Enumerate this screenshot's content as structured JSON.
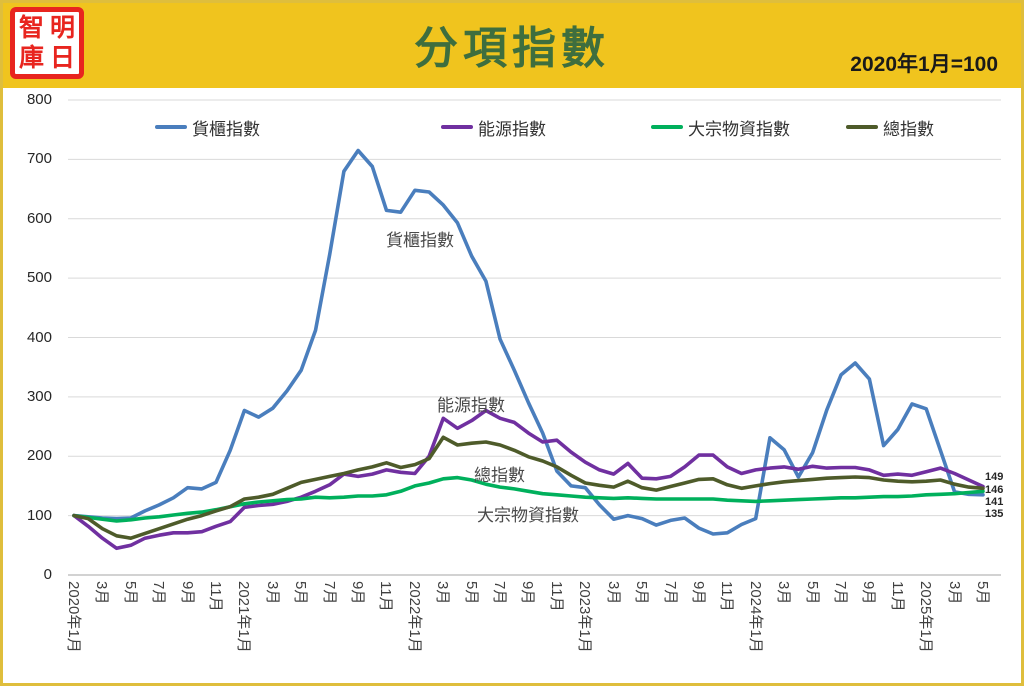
{
  "palette": {
    "header_yellow": "#F0C41E",
    "frame_gold": "#DFBE3C",
    "title_green": "#3E6E3E",
    "logo_red": "#E8251F",
    "gridline": "#D9D9D9",
    "axis_line": "#A6A6A6"
  },
  "header": {
    "title": "分項指數",
    "note": "2020年1月=100",
    "logo": {
      "chars": [
        "智",
        "明",
        "庫",
        "日"
      ]
    }
  },
  "chart_data": {
    "type": "line",
    "title": "分項指數",
    "subtitle": "2020年1月=100",
    "y_axis": {
      "min": 0,
      "max": 800,
      "step": 100
    },
    "x_start": "2020年1月",
    "x_end": "2025年5月",
    "months_per_tick": 2,
    "x_labels": [
      "2020年1月",
      "3月",
      "5月",
      "7月",
      "9月",
      "11月",
      "2021年1月",
      "3月",
      "5月",
      "7月",
      "9月",
      "11月",
      "2022年1月",
      "3月",
      "5月",
      "7月",
      "9月",
      "11月",
      "2023年1月",
      "3月",
      "5月",
      "7月",
      "9月",
      "11月",
      "2024年1月",
      "3月",
      "5月",
      "7月",
      "9月",
      "11月",
      "2025年1月",
      "3月",
      "5月"
    ],
    "legend_position": "top",
    "grid": true,
    "series": [
      {
        "name": "貨櫃指數",
        "color": "#4A7EBD",
        "end_label": "135",
        "values": [
          100,
          98,
          96,
          95,
          96,
          108,
          118,
          130,
          147,
          145,
          156,
          210,
          277,
          266,
          281,
          310,
          345,
          412,
          540,
          680,
          715,
          688,
          614,
          611,
          648,
          645,
          623,
          593,
          537,
          495,
          397,
          345,
          290,
          239,
          175,
          150,
          147,
          118,
          94,
          100,
          95,
          84,
          92,
          96,
          79,
          69,
          71,
          85,
          95,
          231,
          211,
          165,
          206,
          278,
          337,
          357,
          330,
          218,
          245,
          288,
          280,
          210,
          140,
          136,
          135
        ]
      },
      {
        "name": "能源指數",
        "color": "#7030A0",
        "end_label": "149",
        "values": [
          100,
          82,
          62,
          45,
          50,
          62,
          67,
          71,
          71,
          73,
          82,
          90,
          114,
          117,
          119,
          124,
          131,
          141,
          152,
          170,
          166,
          170,
          177,
          173,
          171,
          200,
          264,
          247,
          260,
          277,
          264,
          257,
          239,
          224,
          227,
          207,
          190,
          177,
          170,
          188,
          163,
          162,
          166,
          182,
          202,
          202,
          182,
          171,
          177,
          180,
          182,
          178,
          183,
          180,
          181,
          181,
          177,
          168,
          170,
          168,
          174,
          180,
          171,
          160,
          149
        ]
      },
      {
        "name": "大宗物資指數",
        "color": "#00B05C",
        "end_label": "141",
        "values": [
          100,
          97,
          94,
          91,
          93,
          96,
          98,
          101,
          104,
          106,
          110,
          115,
          120,
          123,
          125,
          127,
          128,
          131,
          130,
          131,
          133,
          133,
          135,
          141,
          150,
          155,
          162,
          164,
          160,
          153,
          148,
          145,
          141,
          137,
          135,
          133,
          131,
          130,
          129,
          130,
          129,
          128,
          128,
          128,
          128,
          128,
          126,
          125,
          124,
          125,
          126,
          127,
          128,
          129,
          130,
          130,
          131,
          132,
          132,
          133,
          135,
          136,
          137,
          139,
          141
        ]
      },
      {
        "name": "總指數",
        "color": "#4E5B2A",
        "end_label": "146",
        "values": [
          100,
          95,
          78,
          66,
          62,
          70,
          78,
          86,
          94,
          100,
          108,
          115,
          128,
          131,
          136,
          146,
          156,
          161,
          166,
          171,
          177,
          182,
          189,
          181,
          186,
          196,
          232,
          219,
          222,
          224,
          219,
          210,
          199,
          192,
          182,
          168,
          155,
          151,
          148,
          158,
          147,
          143,
          149,
          155,
          161,
          162,
          152,
          146,
          150,
          154,
          157,
          159,
          161,
          163,
          164,
          165,
          164,
          160,
          158,
          157,
          158,
          160,
          153,
          148,
          146
        ]
      }
    ],
    "end_value_labels": [
      "149",
      "146",
      "141",
      "135"
    ],
    "annotations": [
      {
        "text": "貨櫃指數",
        "x": 386,
        "y": 226
      },
      {
        "text": "能源指數",
        "x": 437,
        "y": 391
      },
      {
        "text": "總指數",
        "x": 474,
        "y": 461
      },
      {
        "text": "大宗物資指數",
        "x": 477,
        "y": 501
      }
    ]
  }
}
